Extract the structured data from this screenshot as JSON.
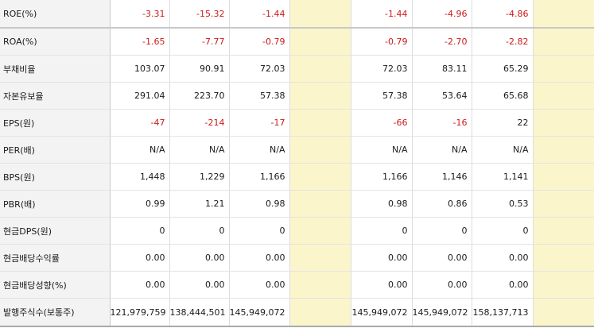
{
  "rows": [
    {
      "label": "ROE(%)",
      "values": [
        "-3.31",
        "-15.32",
        "-1.44",
        "",
        "-1.44",
        "-4.96",
        "-4.86",
        ""
      ],
      "neg": [
        true,
        true,
        true,
        false,
        true,
        true,
        true,
        false
      ]
    },
    {
      "label": "ROA(%)",
      "values": [
        "-1.65",
        "-7.77",
        "-0.79",
        "",
        "-0.79",
        "-2.70",
        "-2.82",
        ""
      ],
      "neg": [
        true,
        true,
        true,
        false,
        true,
        true,
        true,
        false
      ]
    },
    {
      "label": "부채비율",
      "values": [
        "103.07",
        "90.91",
        "72.03",
        "",
        "72.03",
        "83.11",
        "65.29",
        ""
      ],
      "neg": [
        false,
        false,
        false,
        false,
        false,
        false,
        false,
        false
      ]
    },
    {
      "label": "자본유보율",
      "values": [
        "291.04",
        "223.70",
        "57.38",
        "",
        "57.38",
        "53.64",
        "65.68",
        ""
      ],
      "neg": [
        false,
        false,
        false,
        false,
        false,
        false,
        false,
        false
      ]
    },
    {
      "label": "EPS(원)",
      "values": [
        "-47",
        "-214",
        "-17",
        "",
        "-66",
        "-16",
        "22",
        ""
      ],
      "neg": [
        true,
        true,
        true,
        false,
        true,
        true,
        false,
        false
      ]
    },
    {
      "label": "PER(배)",
      "values": [
        "N/A",
        "N/A",
        "N/A",
        "",
        "N/A",
        "N/A",
        "N/A",
        ""
      ],
      "neg": [
        false,
        false,
        false,
        false,
        false,
        false,
        false,
        false
      ]
    },
    {
      "label": "BPS(원)",
      "values": [
        "1,448",
        "1,229",
        "1,166",
        "",
        "1,166",
        "1,146",
        "1,141",
        ""
      ],
      "neg": [
        false,
        false,
        false,
        false,
        false,
        false,
        false,
        false
      ]
    },
    {
      "label": "PBR(배)",
      "values": [
        "0.99",
        "1.21",
        "0.98",
        "",
        "0.98",
        "0.86",
        "0.53",
        ""
      ],
      "neg": [
        false,
        false,
        false,
        false,
        false,
        false,
        false,
        false
      ]
    },
    {
      "label": "현금DPS(원)",
      "values": [
        "0",
        "0",
        "0",
        "",
        "0",
        "0",
        "0",
        ""
      ],
      "neg": [
        false,
        false,
        false,
        false,
        false,
        false,
        false,
        false
      ]
    },
    {
      "label": "현금배당수익률",
      "values": [
        "0.00",
        "0.00",
        "0.00",
        "",
        "0.00",
        "0.00",
        "0.00",
        ""
      ],
      "neg": [
        false,
        false,
        false,
        false,
        false,
        false,
        false,
        false
      ]
    },
    {
      "label": "현금배당성향(%)",
      "values": [
        "0.00",
        "0.00",
        "0.00",
        "",
        "0.00",
        "0.00",
        "0.00",
        ""
      ],
      "neg": [
        false,
        false,
        false,
        false,
        false,
        false,
        false,
        false
      ]
    },
    {
      "label": "발행주식수(보통주)",
      "values": [
        "121,979,759",
        "138,444,501",
        "145,949,072",
        "",
        "145,949,072",
        "145,949,072",
        "158,137,713",
        ""
      ],
      "neg": [
        false,
        false,
        false,
        false,
        false,
        false,
        false,
        false
      ]
    }
  ],
  "colors": {
    "negative": "#cc1a1a",
    "highlight_column": "#fbf5cc",
    "label_background": "#f3f3f3"
  }
}
